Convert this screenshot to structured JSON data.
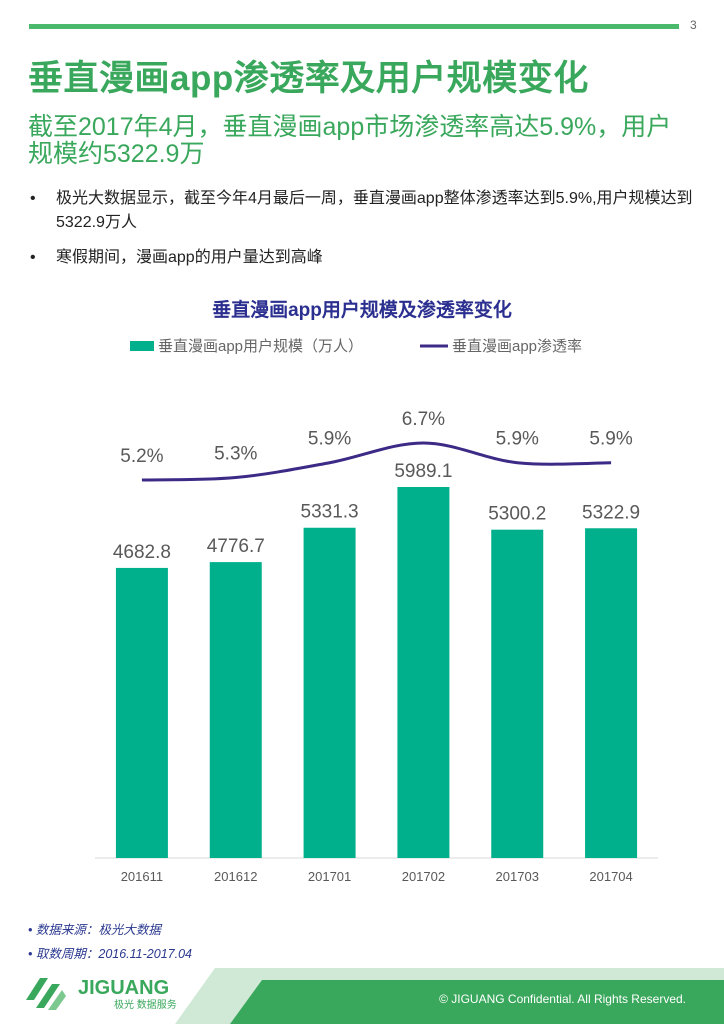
{
  "page": {
    "number": "3"
  },
  "header": {
    "title": "垂直漫画app渗透率及用户规模变化",
    "subtitle": "截至2017年4月，垂直漫画app市场渗透率高达5.9%，用户规模约5322.9万"
  },
  "bullets": [
    {
      "symbol": "•",
      "text": "极光大数据显示，截至今年4月最后一周，垂直漫画app整体渗透率达到5.9%,用户规模达到5322.9万人"
    },
    {
      "symbol": "•",
      "text": "寒假期间，漫画app的用户量达到高峰"
    }
  ],
  "chart_data": {
    "type": "bar+line",
    "title": "垂直漫画app用户规模及渗透率变化",
    "categories": [
      "201611",
      "201612",
      "201701",
      "201702",
      "201703",
      "201704"
    ],
    "series": [
      {
        "name": "垂直漫画app用户规模（万人）",
        "type": "bar",
        "color": "#00b08c",
        "values": [
          4682.8,
          4776.7,
          5331.3,
          5989.1,
          5300.2,
          5322.9
        ],
        "labels": [
          "4682.8",
          "4776.7",
          "5331.3",
          "5989.1",
          "5300.2",
          "5322.9"
        ]
      },
      {
        "name": "垂直漫画app渗透率",
        "type": "line",
        "color": "#3c2a86",
        "values": [
          5.2,
          5.3,
          5.9,
          6.7,
          5.9,
          5.9
        ],
        "labels": [
          "5.2%",
          "5.3%",
          "5.9%",
          "6.7%",
          "5.9%",
          "5.9%"
        ]
      }
    ],
    "legend_position": "top",
    "grid": false
  },
  "notes": [
    {
      "symbol": "•",
      "text": "数据来源：极光大数据"
    },
    {
      "symbol": "•",
      "text": "取数周期：2016.11-2017.04"
    }
  ],
  "footer": {
    "brand": "JIGUANG",
    "brand_sub": "极光 数据服务",
    "copyright": "© JIGUANG Confidential. All Rights Reserved.",
    "colors": {
      "band_dark": "#3aa85c",
      "band_light": "#cfe9d6"
    }
  }
}
